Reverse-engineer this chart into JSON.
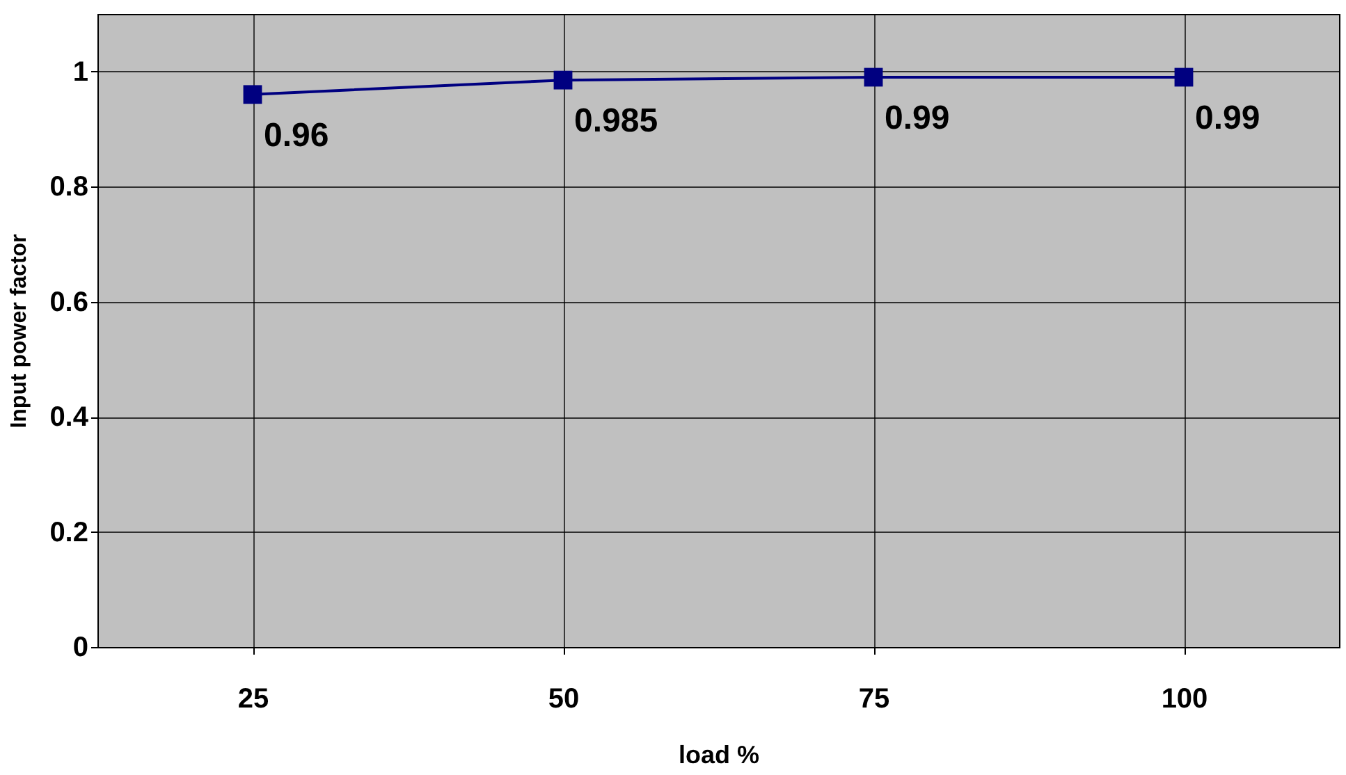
{
  "chart_data": {
    "type": "line",
    "xlabel": "load %",
    "ylabel": "Input power factor",
    "categories": [
      "25",
      "50",
      "75",
      "100"
    ],
    "series": [
      {
        "color": "#000080",
        "values": [
          0.96,
          0.985,
          0.99,
          0.99
        ]
      }
    ],
    "ylim": [
      0,
      1.1
    ],
    "yticks": [
      0,
      0.2,
      0.4,
      0.6,
      0.8,
      1
    ],
    "grid": true,
    "marker": "square",
    "line_style": "solid",
    "data_labels": true,
    "legend": false
  }
}
